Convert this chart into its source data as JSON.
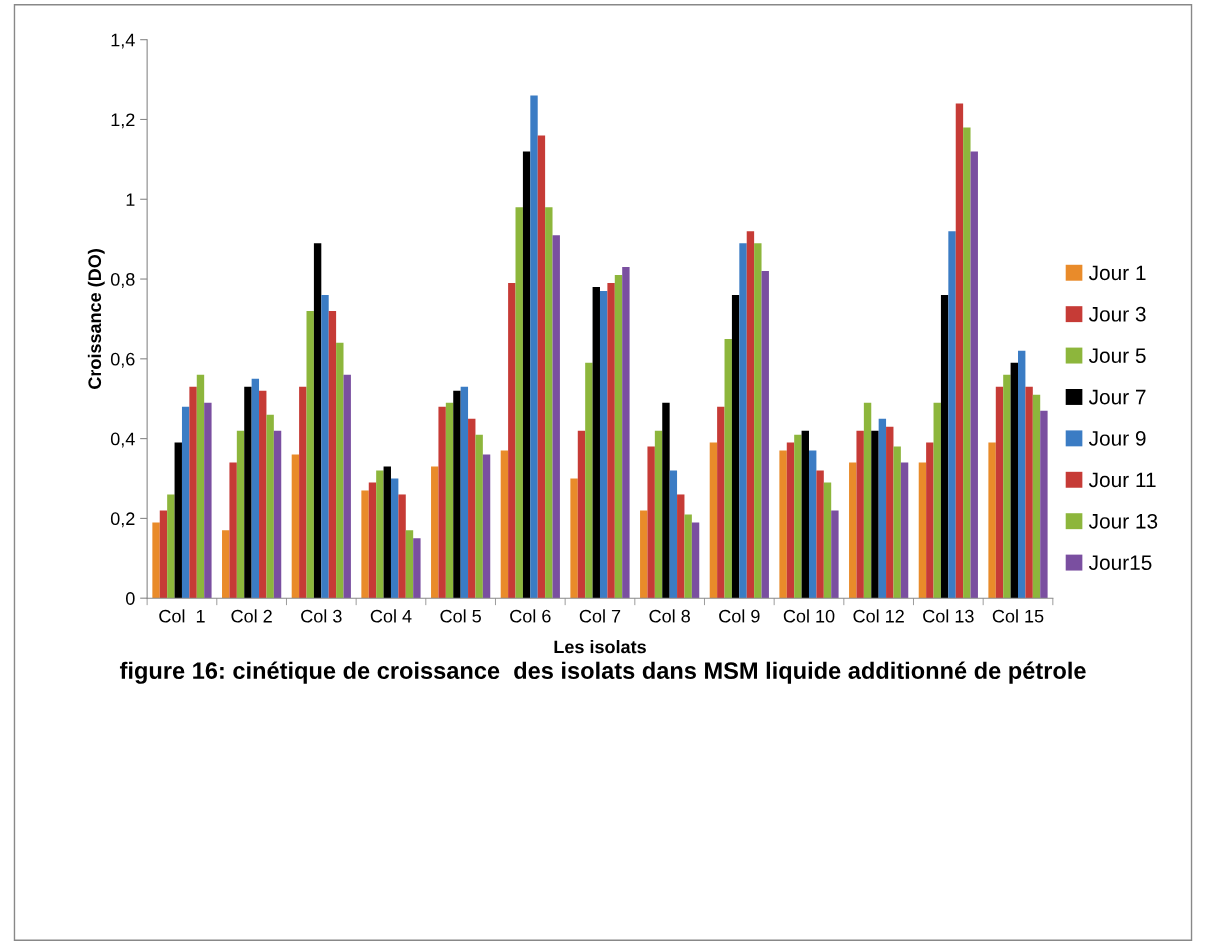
{
  "chart_data": {
    "type": "bar",
    "title": "figure 16: cinétique de croissance  des isolats dans MSM liquide additionné de pétrole",
    "xlabel": "Les isolats",
    "ylabel": "Croissance (DO)",
    "categories": [
      "Col  1",
      "Col 2",
      "Col 3",
      "Col 4",
      "Col 5",
      "Col 6",
      "Col 7",
      "Col 8",
      "Col 9",
      "Col 10",
      "Col 12",
      "Col 13",
      "Col 15"
    ],
    "series": [
      {
        "name": "Jour 1",
        "color": "#e98b2a",
        "values": [
          0.19,
          0.17,
          0.36,
          0.27,
          0.33,
          0.37,
          0.3,
          0.22,
          0.39,
          0.37,
          0.34,
          0.34,
          0.39
        ]
      },
      {
        "name": "Jour 3",
        "color": "#c63b36",
        "values": [
          0.22,
          0.34,
          0.53,
          0.29,
          0.48,
          0.79,
          0.42,
          0.38,
          0.48,
          0.39,
          0.42,
          0.39,
          0.53
        ]
      },
      {
        "name": "Jour 5",
        "color": "#8db63c",
        "values": [
          0.26,
          0.42,
          0.72,
          0.32,
          0.49,
          0.98,
          0.59,
          0.42,
          0.65,
          0.41,
          0.49,
          0.49,
          0.56
        ]
      },
      {
        "name": "Jour 7",
        "color": "#000000",
        "values": [
          0.39,
          0.53,
          0.89,
          0.33,
          0.52,
          1.12,
          0.78,
          0.49,
          0.76,
          0.42,
          0.42,
          0.76,
          0.59
        ]
      },
      {
        "name": "Jour 9",
        "color": "#3b7cc4",
        "values": [
          0.48,
          0.55,
          0.76,
          0.3,
          0.53,
          1.26,
          0.77,
          0.32,
          0.89,
          0.37,
          0.45,
          0.92,
          0.62
        ]
      },
      {
        "name": "Jour 11",
        "color": "#c63b36",
        "values": [
          0.53,
          0.52,
          0.72,
          0.26,
          0.45,
          1.16,
          0.79,
          0.26,
          0.92,
          0.32,
          0.43,
          1.24,
          0.53
        ]
      },
      {
        "name": "Jour 13",
        "color": "#8db63c",
        "values": [
          0.56,
          0.46,
          0.64,
          0.17,
          0.41,
          0.98,
          0.81,
          0.21,
          0.89,
          0.29,
          0.38,
          1.18,
          0.51
        ]
      },
      {
        "name": "Jour15",
        "color": "#7a4fa0",
        "values": [
          0.49,
          0.42,
          0.56,
          0.15,
          0.36,
          0.91,
          0.83,
          0.19,
          0.82,
          0.22,
          0.34,
          1.12,
          0.47
        ]
      }
    ],
    "ylim": [
      0,
      1.4
    ],
    "yticks": [
      0,
      {
        "value": 0.2,
        "label": "0,2"
      },
      {
        "value": 0.4,
        "label": "0,4"
      },
      {
        "value": 0.6,
        "label": "0,6"
      },
      {
        "value": 0.8,
        "label": "0,8"
      },
      1,
      {
        "value": 1.2,
        "label": "1,2"
      },
      {
        "value": 1.4,
        "label": "1,4"
      }
    ],
    "legend": "right",
    "grid": false
  }
}
